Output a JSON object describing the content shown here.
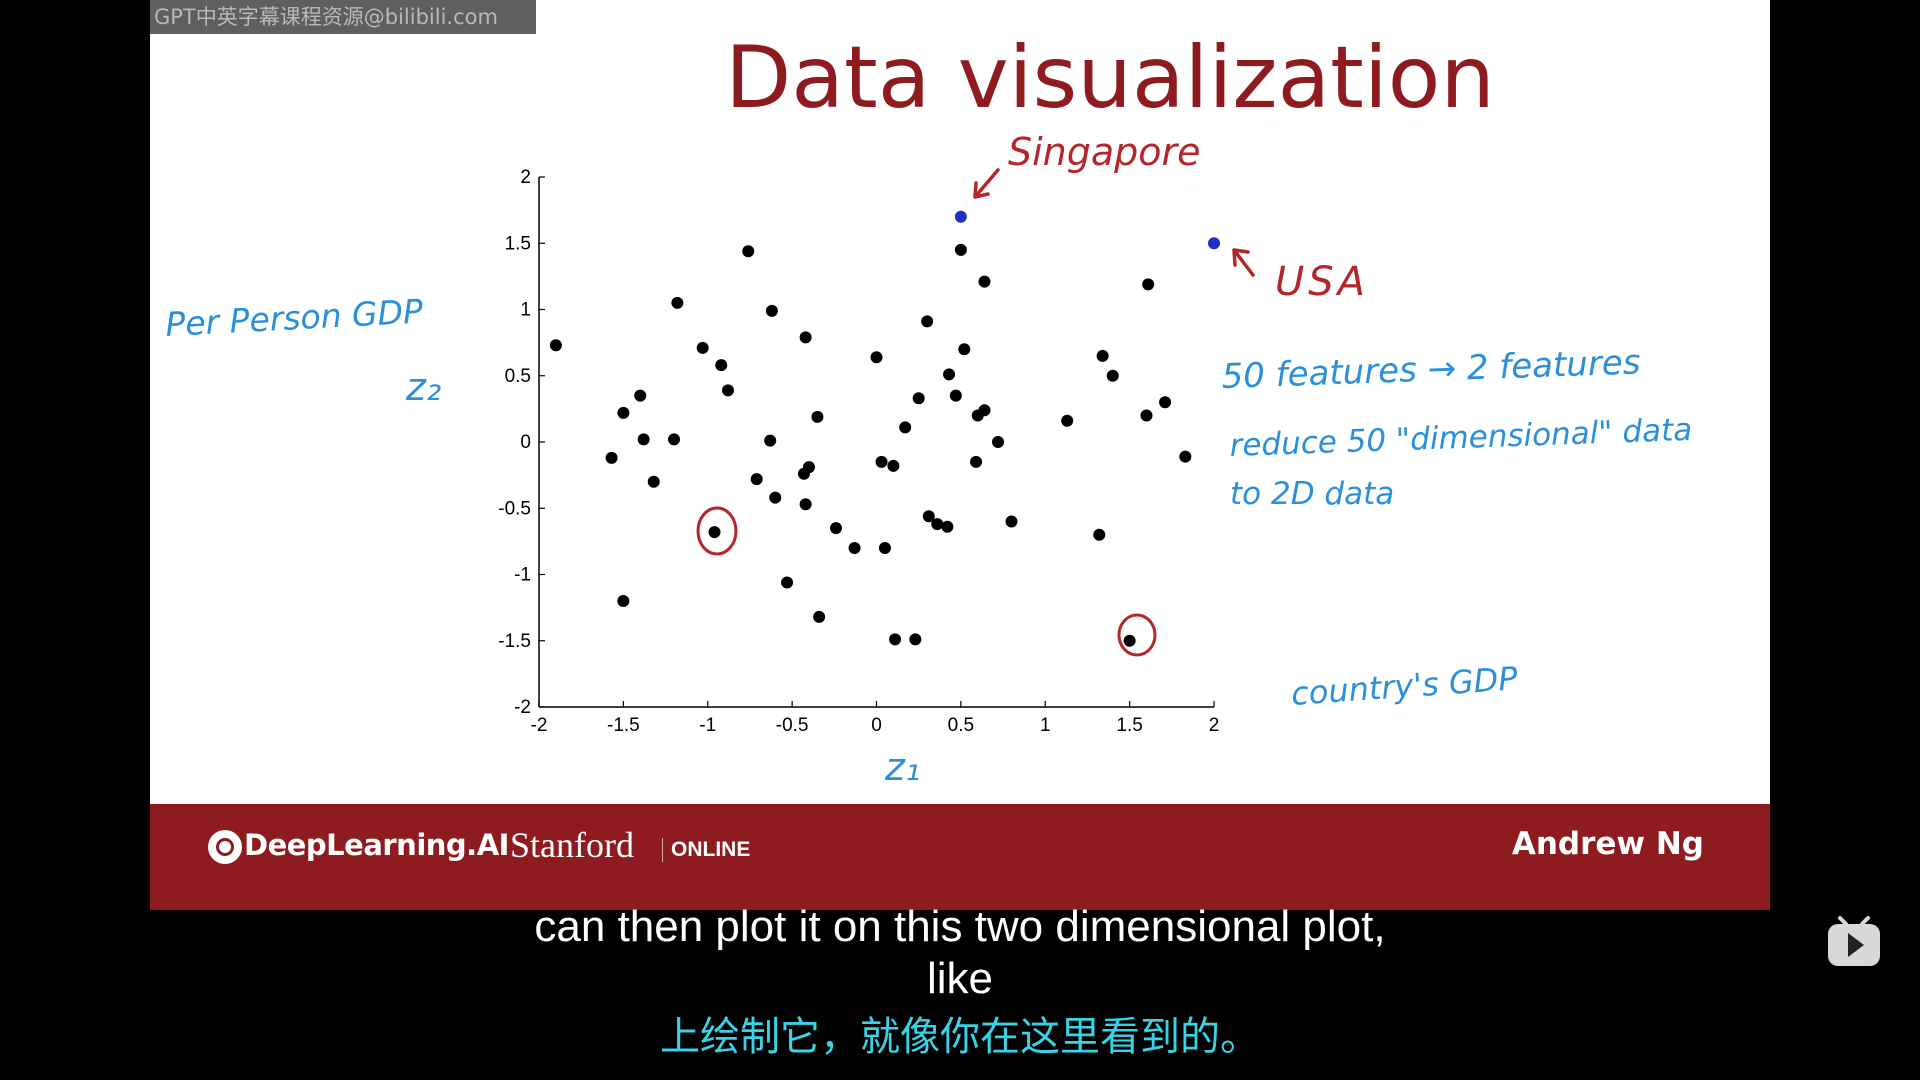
{
  "watermark": "GPT中英字幕课程资源@bilibili.com",
  "slide": {
    "title": "Data visualization",
    "footer": {
      "deeplearning_logo_text": "DeepLearning.AI",
      "stanford_text": "Stanford",
      "online_text": "ONLINE",
      "author": "Andrew Ng"
    }
  },
  "annotations": {
    "singapore": "Singapore",
    "usa": "USA",
    "per_person_gdp": "Per Person GDP",
    "z2": "z₂",
    "z1": "z₁",
    "features_line": "50 features → 2 features",
    "reduce_line1": "reduce 50 \"dimensional\" data",
    "reduce_line2": "to 2D data",
    "country_gdp": "country's GDP"
  },
  "chart_data": {
    "type": "scatter",
    "xlim": [
      -2,
      2
    ],
    "ylim": [
      -2,
      2
    ],
    "x_ticks": [
      "-2",
      "-1.5",
      "-1",
      "-0.5",
      "0",
      "0.5",
      "1",
      "1.5",
      "2"
    ],
    "y_ticks": [
      "2",
      "1.5",
      "1",
      "0.5",
      "0",
      "-0.5",
      "-1",
      "-1.5",
      "-2"
    ],
    "grid": false,
    "points": [
      [
        -1.9,
        0.73
      ],
      [
        -1.5,
        0.22
      ],
      [
        -1.4,
        0.35
      ],
      [
        -1.38,
        0.02
      ],
      [
        -1.57,
        -0.12
      ],
      [
        -1.32,
        -0.3
      ],
      [
        -1.5,
        -1.2
      ],
      [
        -1.18,
        1.05
      ],
      [
        -1.2,
        0.02
      ],
      [
        -1.03,
        0.71
      ],
      [
        -0.92,
        0.58
      ],
      [
        -0.88,
        0.39
      ],
      [
        -0.96,
        -0.68
      ],
      [
        -0.76,
        1.44
      ],
      [
        -0.71,
        -0.28
      ],
      [
        -0.62,
        0.99
      ],
      [
        -0.63,
        0.01
      ],
      [
        -0.6,
        -0.42
      ],
      [
        -0.53,
        -1.06
      ],
      [
        -0.42,
        0.79
      ],
      [
        -0.43,
        -0.24
      ],
      [
        -0.42,
        -0.47
      ],
      [
        -0.4,
        -0.19
      ],
      [
        -0.35,
        0.19
      ],
      [
        -0.34,
        -1.32
      ],
      [
        -0.24,
        -0.65
      ],
      [
        -0.13,
        -0.8
      ],
      [
        0.0,
        0.64
      ],
      [
        0.03,
        -0.15
      ],
      [
        0.05,
        -0.8
      ],
      [
        0.1,
        -0.18
      ],
      [
        0.11,
        -1.49
      ],
      [
        0.17,
        0.11
      ],
      [
        0.23,
        -1.49
      ],
      [
        0.25,
        0.33
      ],
      [
        0.3,
        0.91
      ],
      [
        0.31,
        -0.56
      ],
      [
        0.36,
        -0.62
      ],
      [
        0.42,
        -0.64
      ],
      [
        0.43,
        0.51
      ],
      [
        0.47,
        0.35
      ],
      [
        0.5,
        1.45
      ],
      [
        0.52,
        0.7
      ],
      [
        0.59,
        -0.15
      ],
      [
        0.6,
        0.2
      ],
      [
        0.64,
        0.24
      ],
      [
        0.64,
        1.21
      ],
      [
        0.72,
        0.0
      ],
      [
        0.8,
        -0.6
      ],
      [
        1.13,
        0.16
      ],
      [
        1.32,
        -0.7
      ],
      [
        1.34,
        0.65
      ],
      [
        1.4,
        0.5
      ],
      [
        1.5,
        -1.5
      ],
      [
        1.6,
        0.2
      ],
      [
        1.61,
        1.19
      ],
      [
        1.71,
        0.3
      ],
      [
        1.83,
        -0.11
      ]
    ],
    "highlighted_points": [
      {
        "label": "Singapore",
        "x": 0.5,
        "y": 1.7
      },
      {
        "label": "USA",
        "x": 2.0,
        "y": 1.5
      }
    ],
    "circled_points": [
      [
        -0.96,
        -0.68
      ],
      [
        1.5,
        -1.5
      ]
    ]
  },
  "subtitles": {
    "english_line1": "can then plot it on this two dimensional plot,",
    "english_line2": "like",
    "chinese": "上绘制它，就像你在这里看到的。"
  },
  "colors": {
    "title_red": "#8e1b1f",
    "ink_blue": "#2b8fd9",
    "ink_red": "#b5262b",
    "highlight_point": "#1f2ec4",
    "subtitle_cn": "#39d3e7"
  }
}
